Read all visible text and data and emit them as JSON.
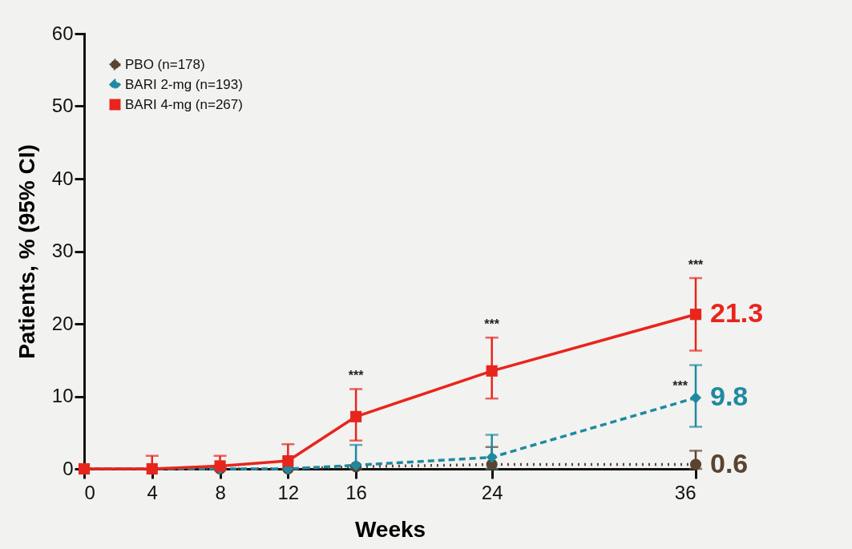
{
  "chart_data": {
    "type": "line",
    "xlabel": "Weeks",
    "ylabel": "Patients, % (95% CI)",
    "x": [
      0,
      4,
      8,
      12,
      16,
      24,
      36
    ],
    "xlim": [
      0,
      36
    ],
    "xticks": [
      0,
      4,
      8,
      12,
      16,
      24,
      36
    ],
    "ylim": [
      0,
      60
    ],
    "yticks": [
      0,
      10,
      20,
      30,
      40,
      50,
      60
    ],
    "grid": false,
    "legend": "top left",
    "series": [
      {
        "name": "PBO (n=178)",
        "color": "#5a4330",
        "marker": "circle",
        "line_style": "dotted",
        "values": [
          0,
          0,
          0,
          0,
          0.3,
          0.6,
          0.6
        ],
        "errors": [
          null,
          null,
          null,
          null,
          null,
          [
            0,
            3.0
          ],
          [
            0,
            2.5
          ]
        ],
        "value_labels": [
          null,
          null,
          null,
          null,
          null,
          null,
          "0.6"
        ]
      },
      {
        "name": "BARI 2-mg (n=193)",
        "color": "#1e8aa0",
        "marker": "diamond",
        "line_style": "dashed",
        "values": [
          0,
          0,
          0,
          0,
          0.5,
          1.6,
          9.8
        ],
        "errors": [
          null,
          null,
          null,
          null,
          [
            0,
            3.3
          ],
          [
            0,
            4.7
          ],
          [
            5.8,
            14.3
          ]
        ],
        "value_labels": [
          null,
          null,
          null,
          null,
          null,
          null,
          "9.8"
        ]
      },
      {
        "name": "BARI 4-mg (n=267)",
        "color": "#e8251d",
        "marker": "square",
        "line_style": "solid",
        "values": [
          0,
          0,
          0.4,
          1.1,
          7.2,
          13.5,
          21.3
        ],
        "errors": [
          null,
          [
            0,
            1.8
          ],
          [
            0.4,
            1.8
          ],
          [
            0,
            3.4
          ],
          [
            3.9,
            11.0
          ],
          [
            9.7,
            18.1
          ],
          [
            16.3,
            26.3
          ]
        ],
        "value_labels": [
          null,
          null,
          null,
          null,
          null,
          null,
          "21.3"
        ]
      }
    ],
    "annotations": [
      {
        "text": "***",
        "x": 16,
        "y": 11.0
      },
      {
        "text": "***",
        "x": 24,
        "y": 18.1
      },
      {
        "text": "***",
        "x": 36,
        "y": 26.3
      },
      {
        "text": "***",
        "x": 36,
        "y": 9.8
      }
    ]
  }
}
